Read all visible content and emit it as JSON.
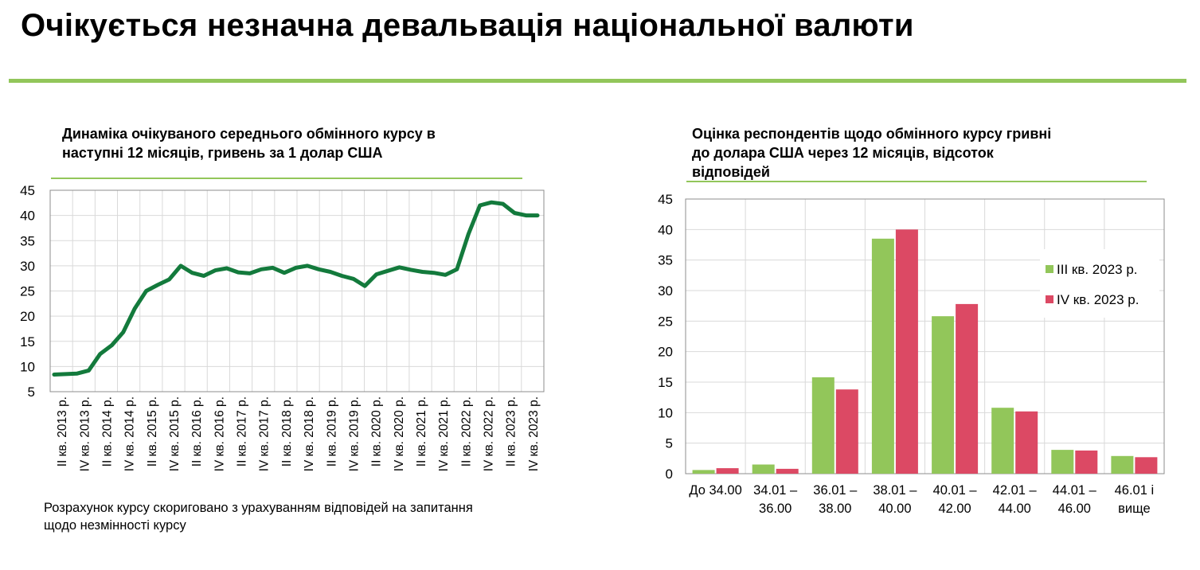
{
  "page": {
    "title": "Очікується незначна девальвація національної валюти",
    "accent": "#92c65a"
  },
  "left": {
    "title_lines": [
      "Динаміка очікуваного середнього обмінного курсу в",
      "наступні 12 місяців, гривень за 1 долар США"
    ],
    "note_lines": [
      "Розрахунок курсу скориговано з урахуванням відповідей на запитання",
      "щодо незмінності курсу"
    ]
  },
  "right": {
    "title_lines": [
      "Оцінка респондентів щодо обмінного курсу гривні",
      "до долара США через 12 місяців, відсоток",
      "відповідей"
    ]
  },
  "chart_data": [
    {
      "type": "line",
      "title": "Динаміка очікуваного середнього обмінного курсу в наступні 12 місяців, гривень за 1 долар США",
      "ylim": [
        5,
        45
      ],
      "yticks": [
        5,
        10,
        15,
        20,
        25,
        30,
        35,
        40,
        45
      ],
      "grid": true,
      "color": "#137a3c",
      "x_labels": [
        "II кв. 2013 р.",
        "IV кв. 2013 р.",
        "II кв. 2014 р.",
        "IV кв. 2014 р.",
        "II кв. 2015 р.",
        "IV кв. 2015 р.",
        "II кв. 2016 р.",
        "IV кв. 2016 р.",
        "II кв. 2017 р.",
        "IV кв. 2017 р.",
        "II кв. 2018 р.",
        "IV кв. 2018 р.",
        "II кв. 2019 р.",
        "IV кв. 2019 р.",
        "II кв. 2020 р.",
        "IV кв. 2020 р.",
        "II кв. 2021 р.",
        "IV кв. 2021 р.",
        "II кв. 2022 р.",
        "IV кв. 2022 р.",
        "II кв. 2023 р.",
        "IV кв. 2023 р."
      ],
      "values": [
        8.4,
        8.5,
        8.6,
        9.2,
        12.5,
        14.2,
        16.8,
        21.5,
        25.0,
        26.2,
        27.3,
        30.0,
        28.6,
        28.0,
        29.1,
        29.5,
        28.7,
        28.5,
        29.3,
        29.6,
        28.6,
        29.6,
        30.0,
        29.3,
        28.8,
        28.0,
        27.4,
        26.0,
        28.3,
        29.0,
        29.7,
        29.2,
        28.8,
        28.6,
        28.2,
        29.3,
        36.3,
        42.0,
        42.6,
        42.3,
        40.5,
        40.0,
        40.0
      ]
    },
    {
      "type": "bar",
      "title": "Оцінка респондентів щодо обмінного курсу гривні до долара США через 12 місяців, відсоток відповідей",
      "ylim": [
        0,
        45
      ],
      "yticks": [
        0,
        5,
        10,
        15,
        20,
        25,
        30,
        35,
        40,
        45
      ],
      "grid": true,
      "legend": "right",
      "categories": [
        [
          "До 34.00"
        ],
        [
          "34.01 –",
          "36.00"
        ],
        [
          "36.01 –",
          "38.00"
        ],
        [
          "38.01 –",
          "40.00"
        ],
        [
          "40.01 –",
          "42.00"
        ],
        [
          "42.01 –",
          "44.00"
        ],
        [
          "44.01 –",
          "46.00"
        ],
        [
          "46.01 і",
          "вище"
        ]
      ],
      "series": [
        {
          "name": "III кв. 2023 р.",
          "color": "#92c65a",
          "values": [
            0.6,
            1.5,
            15.8,
            38.5,
            25.8,
            10.8,
            3.9,
            2.9
          ]
        },
        {
          "name": "IV кв. 2023 р.",
          "color": "#dc4964",
          "values": [
            0.9,
            0.8,
            13.8,
            40.0,
            27.8,
            10.2,
            3.8,
            2.7
          ]
        }
      ]
    }
  ]
}
